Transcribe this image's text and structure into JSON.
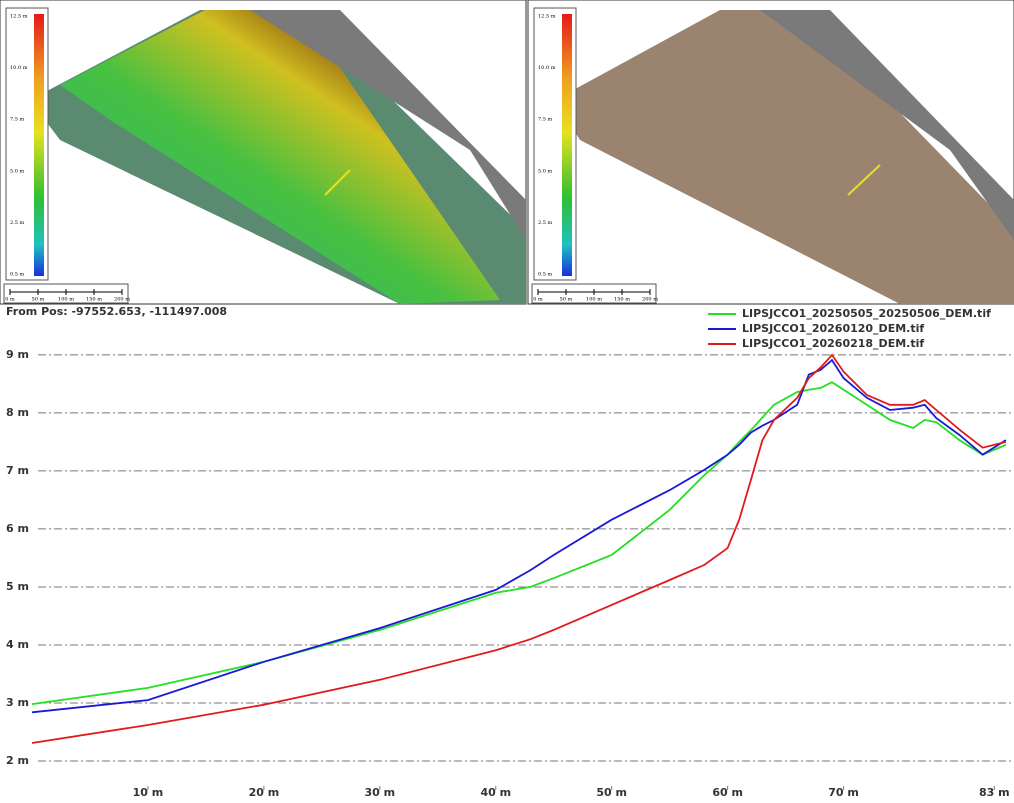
{
  "maps": [
    {
      "colorbar_labels": [
        "12.5 m",
        "10.0 m",
        "7.5 m",
        "5.0 m",
        "2.5 m",
        "0.5 m"
      ],
      "scale_labels": [
        "0 m",
        "50 m",
        "100 m",
        "150 m",
        "200 m"
      ]
    },
    {
      "colorbar_labels": [
        "12.5 m",
        "10.0 m",
        "7.5 m",
        "5.0 m",
        "2.5 m",
        "0.5 m"
      ],
      "scale_labels": [
        "0 m",
        "50 m",
        "100 m",
        "150 m",
        "200 m"
      ]
    }
  ],
  "chart_data": {
    "type": "line",
    "title": "From Pos: -97552.653, -111497.008",
    "x": [
      0,
      10,
      20,
      30,
      40,
      43,
      45,
      50,
      55,
      58,
      60,
      61,
      62,
      63,
      64,
      66,
      67,
      68,
      69,
      70,
      72,
      74,
      76,
      77,
      78,
      80,
      82,
      84
    ],
    "series": [
      {
        "name": "LIPSJCCO1_20250505_20250506_DEM.tif",
        "color": "#22e022",
        "values": [
          2.98,
          3.26,
          3.71,
          4.26,
          4.9,
          5.0,
          5.15,
          5.55,
          6.33,
          6.93,
          7.28,
          7.5,
          7.7,
          7.92,
          8.14,
          8.36,
          8.4,
          8.43,
          8.53,
          8.4,
          8.14,
          7.88,
          7.74,
          7.88,
          7.84,
          7.53,
          7.28,
          7.45
        ]
      },
      {
        "name": "LIPSJCCO1_20260120_DEM.tif",
        "color": "#1a1ad6",
        "values": [
          2.84,
          3.05,
          3.71,
          4.29,
          4.95,
          5.29,
          5.55,
          6.16,
          6.67,
          7.02,
          7.28,
          7.45,
          7.66,
          7.78,
          7.88,
          8.14,
          8.66,
          8.74,
          8.91,
          8.6,
          8.26,
          8.05,
          8.09,
          8.14,
          7.91,
          7.62,
          7.28,
          7.53
        ]
      },
      {
        "name": "LIPSJCCO1_20260218_DEM.tif",
        "color": "#e01a1a",
        "values": [
          2.31,
          2.62,
          2.97,
          3.4,
          3.91,
          4.1,
          4.26,
          4.69,
          5.12,
          5.38,
          5.67,
          6.16,
          6.84,
          7.53,
          7.88,
          8.26,
          8.6,
          8.78,
          9.0,
          8.71,
          8.31,
          8.14,
          8.14,
          8.22,
          8.05,
          7.71,
          7.4,
          7.5
        ]
      }
    ],
    "xlim": [
      0,
      84.7
    ],
    "xticks": [
      {
        "value": 10,
        "label": "10 m"
      },
      {
        "value": 20,
        "label": "20 m"
      },
      {
        "value": 30,
        "label": "30 m"
      },
      {
        "value": 40,
        "label": "40 m"
      },
      {
        "value": 50,
        "label": "50 m"
      },
      {
        "value": 60,
        "label": "60 m"
      },
      {
        "value": 70,
        "label": "70 m"
      },
      {
        "value": 83,
        "label": "83 m"
      }
    ],
    "ylim": [
      1.5,
      9.86
    ],
    "yticks": [
      {
        "value": 2,
        "label": "2 m"
      },
      {
        "value": 3,
        "label": "3 m"
      },
      {
        "value": 4,
        "label": "4 m"
      },
      {
        "value": 5,
        "label": "5 m"
      },
      {
        "value": 6,
        "label": "6 m"
      },
      {
        "value": 7,
        "label": "7 m"
      },
      {
        "value": 8,
        "label": "8 m"
      },
      {
        "value": 9,
        "label": "9 m"
      }
    ],
    "grid": true,
    "legend": "top-right"
  }
}
